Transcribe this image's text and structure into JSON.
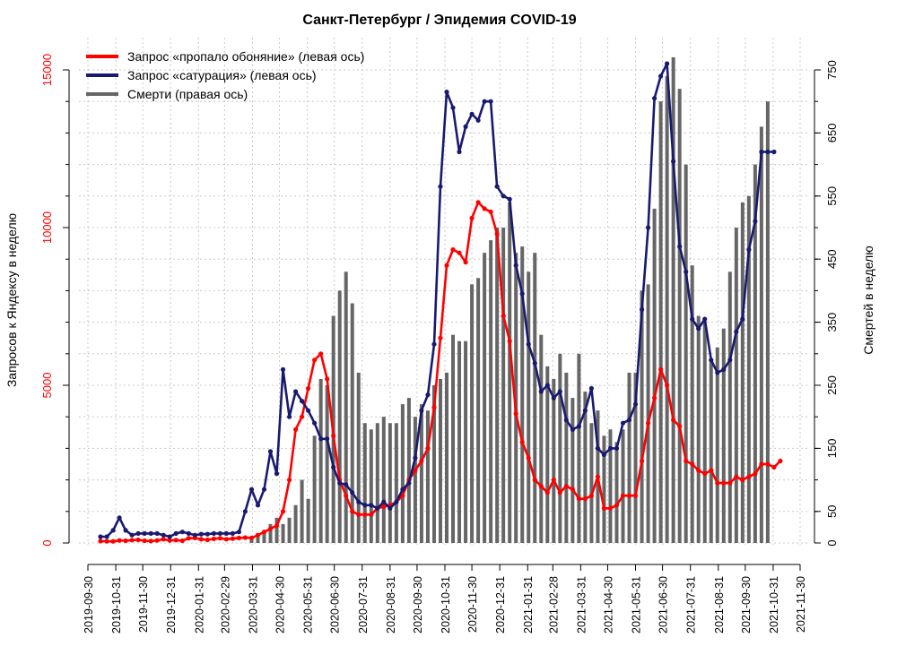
{
  "chart_data": {
    "type": "line",
    "title": "Санкт-Петербург / Эпидемия COVID-19",
    "xlabel": "",
    "ylabel_left": "Запросов к Яндексу в неделю",
    "ylabel_right": "Смертей в неделю",
    "ylim_left": [
      0,
      15000
    ],
    "ylim_right": [
      0,
      750
    ],
    "yticks_left": [
      "0",
      "5000",
      "10000",
      "15000"
    ],
    "yticks_right": [
      "0",
      "50",
      "150",
      "250",
      "350",
      "450",
      "550",
      "650",
      "750"
    ],
    "x_start": "2019-09-30",
    "x_end": "2021-11-30",
    "xticks": [
      "2019-09-30",
      "2019-10-31",
      "2019-11-30",
      "2019-12-31",
      "2020-01-31",
      "2020-02-29",
      "2020-03-31",
      "2020-04-30",
      "2020-05-31",
      "2020-06-30",
      "2020-07-31",
      "2020-08-31",
      "2020-09-30",
      "2020-10-31",
      "2020-11-30",
      "2020-12-31",
      "2021-01-31",
      "2021-02-28",
      "2021-03-31",
      "2021-04-30",
      "2021-05-31",
      "2021-06-30",
      "2021-07-31",
      "2021-08-31",
      "2021-09-30",
      "2021-10-31",
      "2021-11-30"
    ],
    "grid": true,
    "legend_position": "top-left",
    "legend": [
      {
        "label": "Запрос «пропало обоняние» (левая ось)",
        "color": "#ff0000"
      },
      {
        "label": "Запрос «сатурация» (левая ось)",
        "color": "#191970"
      },
      {
        "label": "Смерти (правая ось)",
        "color": "#666666"
      }
    ],
    "series": [
      {
        "name": "Запрос «пропало обоняние» (левая ось)",
        "axis": "left",
        "color": "#ff0000",
        "start": "2019-10-14",
        "values": [
          60,
          50,
          50,
          80,
          70,
          90,
          100,
          70,
          60,
          80,
          120,
          80,
          90,
          70,
          150,
          160,
          120,
          100,
          130,
          150,
          120,
          140,
          160,
          170,
          160,
          250,
          350,
          450,
          550,
          1000,
          2000,
          3600,
          4000,
          4900,
          5800,
          6000,
          5200,
          3400,
          2000,
          1500,
          1000,
          900,
          900,
          900,
          1100,
          1150,
          1200,
          1300,
          1500,
          2000,
          2300,
          2600,
          3000,
          4300,
          6500,
          8800,
          9300,
          9200,
          8900,
          10300,
          10800,
          10600,
          10500,
          9800,
          7200,
          6400,
          4100,
          3200,
          2700,
          2000,
          1800,
          1600,
          2000,
          1600,
          1800,
          1700,
          1400,
          1400,
          1500,
          2100,
          1100,
          1100,
          1200,
          1500,
          1500,
          1500,
          2600,
          3800,
          4600,
          5500,
          5000,
          3900,
          3700,
          2600,
          2500,
          2300,
          2200,
          2300,
          1900,
          1900,
          1900,
          2100,
          2000,
          2100,
          2200,
          2500,
          2500,
          2400,
          2600
        ]
      },
      {
        "name": "Запрос «сатурация» (левая ось)",
        "axis": "left",
        "color": "#191970",
        "start": "2019-10-14",
        "values": [
          200,
          200,
          400,
          800,
          400,
          250,
          300,
          300,
          300,
          300,
          250,
          200,
          300,
          350,
          300,
          250,
          280,
          280,
          300,
          300,
          300,
          300,
          350,
          1000,
          1700,
          1200,
          1700,
          2900,
          2200,
          5500,
          4000,
          4800,
          4500,
          4200,
          3800,
          3300,
          3300,
          2400,
          1900,
          1850,
          1600,
          1300,
          1200,
          1200,
          1100,
          1300,
          1100,
          1300,
          1700,
          1900,
          2700,
          4200,
          4700,
          6300,
          11300,
          14300,
          13800,
          12400,
          13200,
          13600,
          13400,
          14000,
          14000,
          11300,
          11000,
          10900,
          8800,
          7900,
          6300,
          5700,
          4800,
          5000,
          4600,
          4800,
          3900,
          3600,
          3700,
          4200,
          4900,
          3000,
          2800,
          3000,
          3000,
          3800,
          3900,
          4400,
          7400,
          10000,
          14100,
          14800,
          15200,
          12100,
          9400,
          8600,
          7100,
          6800,
          7100,
          5800,
          5400,
          5500,
          5800,
          6700,
          7100,
          9300,
          10200,
          12400,
          12400,
          12400
        ]
      }
    ],
    "bars": {
      "name": "Смерти (правая ось)",
      "axis": "right",
      "color": "#666666",
      "start": "2020-03-30",
      "values": [
        5,
        10,
        20,
        30,
        40,
        30,
        40,
        60,
        100,
        70,
        170,
        260,
        250,
        360,
        400,
        430,
        380,
        270,
        190,
        180,
        190,
        200,
        190,
        190,
        220,
        230,
        200,
        220,
        210,
        250,
        260,
        270,
        330,
        320,
        320,
        410,
        420,
        460,
        480,
        500,
        500,
        540,
        460,
        470,
        430,
        460,
        330,
        280,
        260,
        300,
        270,
        230,
        300,
        240,
        190,
        210,
        170,
        180,
        160,
        180,
        270,
        270,
        400,
        410,
        530,
        700,
        740,
        770,
        720,
        600,
        440,
        360,
        350,
        290,
        310,
        340,
        430,
        500,
        540,
        550,
        600,
        660,
        700
      ]
    }
  }
}
